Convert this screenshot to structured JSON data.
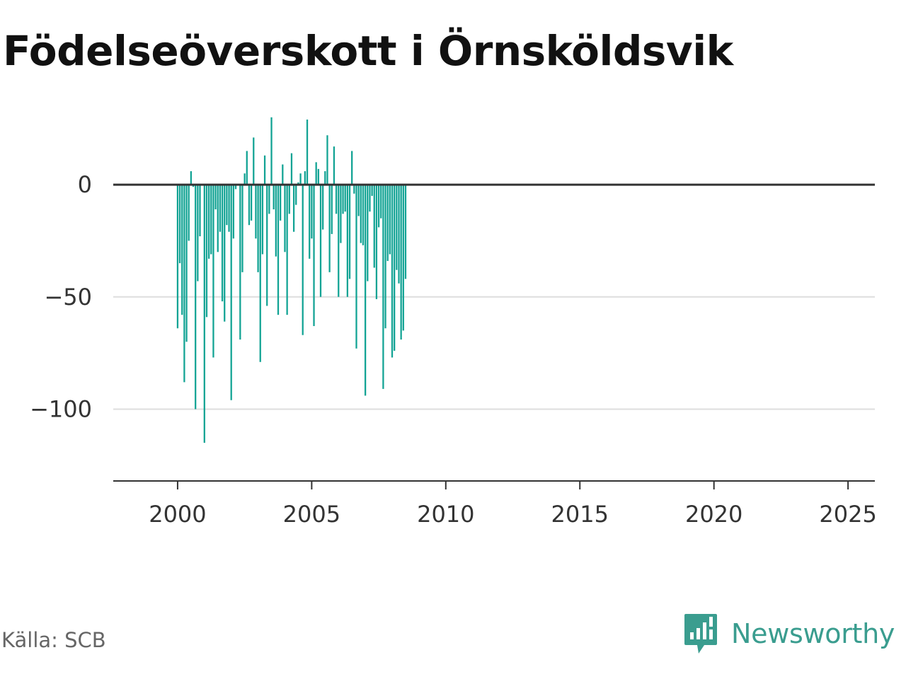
{
  "title": "Födelseöverskott i Örnsköldsvik",
  "source": "Källa: SCB",
  "brand": {
    "name": "Newsworthy",
    "icon": "newsworthy-logo-icon",
    "color": "#3a9d8f"
  },
  "colors": {
    "bar": "#12a394",
    "zero_line": "#333333",
    "grid": "#dddddd",
    "axis": "#333333"
  },
  "chart_data": {
    "type": "bar",
    "title": "Födelseöverskott i Örnsköldsvik",
    "xlabel": "",
    "ylabel": "",
    "xlim": [
      1997.6,
      2026.0
    ],
    "ylim": [
      -132,
      35
    ],
    "x_ticks": [
      2000,
      2005,
      2010,
      2015,
      2020,
      2025
    ],
    "x_tick_labels": [
      "2000",
      "2005",
      "2010",
      "2015",
      "2020",
      "2025"
    ],
    "y_ticks": [
      0,
      -50,
      -100
    ],
    "y_tick_labels": [
      "0",
      "−50",
      "−100"
    ],
    "grid": true,
    "legend": "none",
    "series": [
      {
        "frequency": "monthly",
        "start": "2000-01",
        "values": [
          -64,
          -35,
          -58,
          -88,
          -70,
          -25,
          6,
          -1,
          -100,
          -43,
          -23,
          0,
          -115,
          -59,
          -33,
          -31,
          -77,
          -11,
          -30,
          -21,
          -52,
          -61,
          -18,
          -21,
          -96,
          -24,
          -2,
          0,
          -69,
          -39,
          5,
          15,
          -18,
          -16,
          21,
          -24,
          -39,
          -79,
          -31,
          13,
          -54,
          -13,
          30,
          -11,
          -32,
          -58,
          -16,
          9,
          -30,
          -58,
          -13,
          14,
          -21,
          -9,
          1,
          5,
          -67,
          6,
          29,
          -33,
          -24,
          -63,
          10,
          7,
          -50,
          -20,
          6,
          22,
          -39,
          -22,
          17,
          -13,
          -50,
          -26,
          -13,
          -12,
          -50,
          -42,
          15,
          -4,
          -73,
          -14,
          -26,
          -27,
          -94,
          -43,
          -12,
          -5,
          -37,
          -51,
          -19,
          -15,
          -91,
          -64,
          -34,
          -31,
          -77,
          -74,
          -38,
          -44,
          -69,
          -65,
          -42
        ]
      }
    ]
  }
}
